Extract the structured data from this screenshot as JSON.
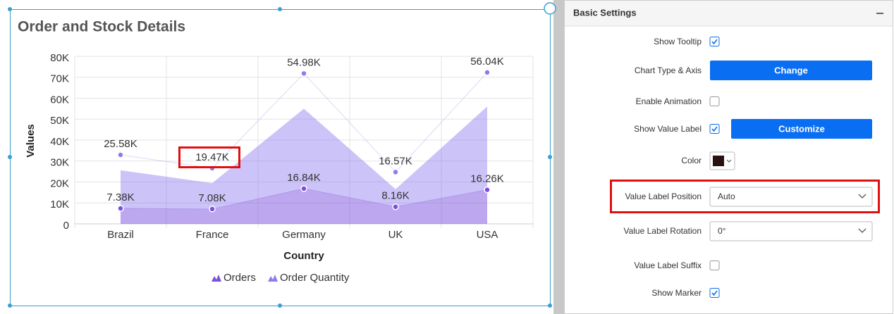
{
  "chart_data": {
    "type": "stacked-area",
    "title": "Order and Stock Details",
    "x_label": "Country",
    "y_label": "Values",
    "categories": [
      "Brazil",
      "France",
      "Germany",
      "UK",
      "USA"
    ],
    "series": [
      {
        "name": "Orders",
        "color": "#7b4fe0",
        "values": [
          7380,
          7080,
          16840,
          8160,
          16260
        ],
        "value_labels": [
          "7.38K",
          "7.08K",
          "16.84K",
          "8.16K",
          "16.26K"
        ]
      },
      {
        "name": "Order Quantity",
        "color": "#8f7bef",
        "values": [
          25580,
          19470,
          54980,
          16570,
          56040
        ],
        "value_labels": [
          "25.58K",
          "19.47K",
          "54.98K",
          "16.57K",
          "56.04K"
        ]
      }
    ],
    "ylim": [
      0,
      80000
    ],
    "yticks": [
      0,
      {
        "value": 10000,
        "label": "10K"
      },
      {
        "value": 20000,
        "label": "20K"
      },
      {
        "value": 30000,
        "label": "30K"
      },
      {
        "value": 40000,
        "label": "40K"
      },
      {
        "value": 50000,
        "label": "50K"
      },
      {
        "value": 60000,
        "label": "60K"
      },
      {
        "value": 70000,
        "label": "70K"
      },
      {
        "value": 80000,
        "label": "80K"
      }
    ],
    "grid": true,
    "legend": "bottom"
  },
  "settings": {
    "title": "Basic Settings",
    "rows": [
      {
        "label": "Show Tooltip",
        "checked": true
      },
      {
        "label": "Chart Type & Axis",
        "button": "Change"
      },
      {
        "label": "Enable Animation",
        "checked": false
      },
      {
        "label": "Show Value Label",
        "checked": true,
        "button": "Customize"
      },
      {
        "label": "Color",
        "color": "#2b1212"
      },
      {
        "label": "Value Label Position",
        "selected": "Auto"
      },
      {
        "label": "Value Label Rotation",
        "selected": "0°"
      },
      {
        "label": "Value Label Suffix",
        "checked": false
      },
      {
        "label": "Show Marker",
        "checked": true
      }
    ]
  }
}
